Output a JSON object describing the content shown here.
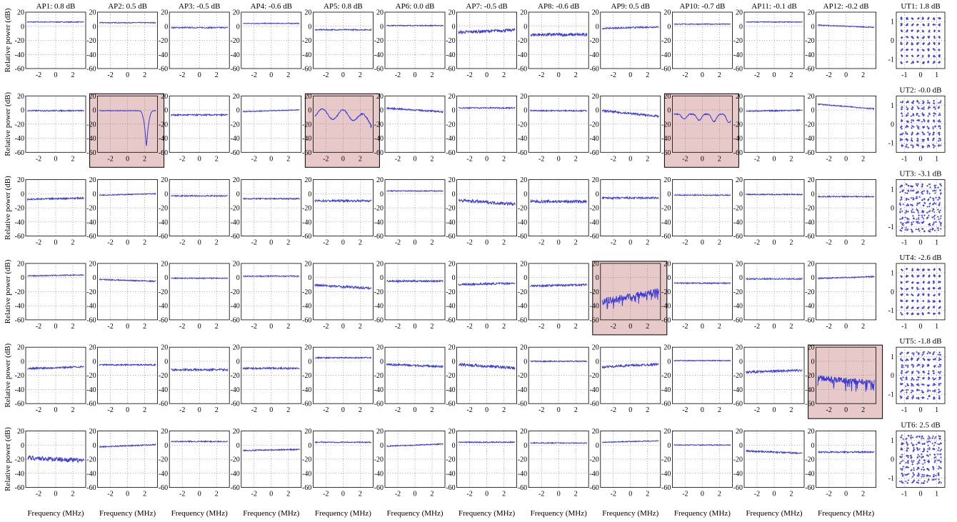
{
  "chart_data": {
    "type": "line",
    "rows": 6,
    "xlabel": "Frequency (MHz)",
    "ylabel": "Relative power (dB)",
    "xlim": [
      -3.5,
      3.5
    ],
    "ylim": [
      -60,
      20
    ],
    "xticks": [
      "-2",
      "0",
      "2"
    ],
    "yticks": [
      "20",
      "0",
      "-20",
      "-40",
      "-60"
    ],
    "grid": true,
    "line_color": "#3a3ad6",
    "highlight_color": "#e8c9c9",
    "access_points": [
      {
        "title": "AP1: 0.8 dB"
      },
      {
        "title": "AP2: 0.5 dB"
      },
      {
        "title": "AP3: -0.5 dB"
      },
      {
        "title": "AP4: -0.6 dB"
      },
      {
        "title": "AP5: 0.8 dB"
      },
      {
        "title": "AP6: 0.0 dB"
      },
      {
        "title": "AP7: -0.5 dB"
      },
      {
        "title": "AP8: -0.6 dB"
      },
      {
        "title": "AP9: 0.5 dB"
      },
      {
        "title": "AP10: -0.7 dB"
      },
      {
        "title": "AP11: -0.1 dB"
      },
      {
        "title": "AP12: -0.2 dB"
      }
    ],
    "users": [
      {
        "title": "UT1: 1.8 dB"
      },
      {
        "title": "UT2: -0.0 dB"
      },
      {
        "title": "UT3: -3.1 dB"
      },
      {
        "title": "UT4: -2.6 dB"
      },
      {
        "title": "UT5: -1.8 dB"
      },
      {
        "title": "UT6: 2.5 dB"
      }
    ],
    "constellation": {
      "xlim": [
        -1.5,
        1.5
      ],
      "ylim": [
        -1.5,
        1.5
      ],
      "xticks": [
        "-1",
        "0",
        "1"
      ],
      "yticks": [
        "1",
        "0",
        "-1"
      ],
      "grid_points": 8,
      "marker": "+"
    },
    "panels": [
      [
        {
          "type": "flat",
          "level": 6,
          "slope": 0,
          "noise": 0.6
        },
        {
          "type": "flat",
          "level": 5,
          "slope": 0,
          "noise": 0.6
        },
        {
          "type": "flat",
          "level": -2,
          "slope": 0,
          "noise": 0.8
        },
        {
          "type": "flat",
          "level": 4,
          "slope": 0,
          "noise": 0.6
        },
        {
          "type": "flat",
          "level": -5,
          "slope": 0,
          "noise": 0.8
        },
        {
          "type": "flat",
          "level": 1,
          "slope": 0,
          "noise": 0.6
        },
        {
          "type": "flat",
          "level": -7,
          "slope": 0.5,
          "noise": 2
        },
        {
          "type": "flat",
          "level": -12,
          "slope": 0,
          "noise": 2.2
        },
        {
          "type": "flat",
          "level": -2,
          "slope": 0.3,
          "noise": 1
        },
        {
          "type": "flat",
          "level": 3,
          "slope": 0,
          "noise": 0.6
        },
        {
          "type": "flat",
          "level": 6,
          "slope": 0,
          "noise": 0.6
        },
        {
          "type": "flat",
          "level": 0,
          "slope": -0.5,
          "noise": 0.6
        }
      ],
      [
        {
          "type": "flat",
          "level": -1,
          "slope": 0,
          "noise": 0.8
        },
        {
          "type": "notch",
          "highlight": true
        },
        {
          "type": "flat",
          "level": -7,
          "slope": 0,
          "noise": 1
        },
        {
          "type": "flat",
          "level": -1,
          "slope": 0.4,
          "noise": 0.6
        },
        {
          "type": "lobes",
          "highlight": true
        },
        {
          "type": "flat",
          "level": 0,
          "slope": -0.8,
          "noise": 1
        },
        {
          "type": "flat",
          "level": 3,
          "slope": 0,
          "noise": 0.8
        },
        {
          "type": "flat",
          "level": -1,
          "slope": 0,
          "noise": 0.8
        },
        {
          "type": "flat",
          "level": -5,
          "slope": -1.2,
          "noise": 1.5
        },
        {
          "type": "ripples",
          "highlight": true
        },
        {
          "type": "flat",
          "level": -1,
          "slope": 0.2,
          "noise": 0.8
        },
        {
          "type": "flat",
          "level": 5,
          "slope": -1,
          "noise": 0.7
        }
      ],
      [
        {
          "type": "flat",
          "level": -7,
          "slope": 0.3,
          "noise": 1
        },
        {
          "type": "flat",
          "level": -1,
          "slope": 0.3,
          "noise": 0.6
        },
        {
          "type": "flat",
          "level": -3,
          "slope": 0,
          "noise": 0.8
        },
        {
          "type": "flat",
          "level": -7,
          "slope": 0,
          "noise": 0.8
        },
        {
          "type": "flat",
          "level": -10,
          "slope": 0,
          "noise": 1.4
        },
        {
          "type": "flat",
          "level": 4,
          "slope": 0,
          "noise": 0.7
        },
        {
          "type": "flat",
          "level": -12,
          "slope": -0.8,
          "noise": 2.2
        },
        {
          "type": "flat",
          "level": -11,
          "slope": 0,
          "noise": 2
        },
        {
          "type": "flat",
          "level": -6,
          "slope": 0,
          "noise": 1.4
        },
        {
          "type": "flat",
          "level": -2,
          "slope": 0,
          "noise": 0.7
        },
        {
          "type": "flat",
          "level": -1,
          "slope": 0,
          "noise": 0.7
        },
        {
          "type": "flat",
          "level": -4,
          "slope": 0,
          "noise": 0.8
        }
      ],
      [
        {
          "type": "flat",
          "level": 3,
          "slope": 0.2,
          "noise": 0.7
        },
        {
          "type": "flat",
          "level": -4,
          "slope": -0.4,
          "noise": 0.8
        },
        {
          "type": "flat",
          "level": -1,
          "slope": 0,
          "noise": 0.7
        },
        {
          "type": "flat",
          "level": 2,
          "slope": 0,
          "noise": 0.7
        },
        {
          "type": "flat",
          "level": -13,
          "slope": -0.7,
          "noise": 1.6
        },
        {
          "type": "flat",
          "level": -5,
          "slope": 0,
          "noise": 1.2
        },
        {
          "type": "flat",
          "level": -9,
          "slope": 0.3,
          "noise": 1.4
        },
        {
          "type": "flat",
          "level": -11,
          "slope": 0.3,
          "noise": 1.4
        },
        {
          "type": "noisy",
          "highlight": true
        },
        {
          "type": "flat",
          "level": -8,
          "slope": 0,
          "noise": 0.8
        },
        {
          "type": "flat",
          "level": -2,
          "slope": 0,
          "noise": 0.8
        },
        {
          "type": "flat",
          "level": 0,
          "slope": 0.4,
          "noise": 0.8
        }
      ],
      [
        {
          "type": "flat",
          "level": -9,
          "slope": 0.4,
          "noise": 1.2
        },
        {
          "type": "flat",
          "level": -5,
          "slope": 0,
          "noise": 0.9
        },
        {
          "type": "flat",
          "level": -12,
          "slope": 0,
          "noise": 1.4
        },
        {
          "type": "flat",
          "level": -10,
          "slope": 0,
          "noise": 1.2
        },
        {
          "type": "flat",
          "level": 5,
          "slope": 0,
          "noise": 0.8
        },
        {
          "type": "flat",
          "level": -6,
          "slope": -0.5,
          "noise": 1.4
        },
        {
          "type": "flat",
          "level": -7,
          "slope": -0.8,
          "noise": 2
        },
        {
          "type": "flat",
          "level": 0,
          "slope": 0,
          "noise": 0.8
        },
        {
          "type": "flat",
          "level": -6,
          "slope": 0.6,
          "noise": 1.6
        },
        {
          "type": "flat",
          "level": 1,
          "slope": 0,
          "noise": 0.6
        },
        {
          "type": "flat",
          "level": -14,
          "slope": 0.4,
          "noise": 1.6
        },
        {
          "type": "deepnoisy",
          "highlight": true
        }
      ],
      [
        {
          "type": "flat",
          "level": -20,
          "slope": -0.6,
          "noise": 3.2
        },
        {
          "type": "flat",
          "level": -1,
          "slope": 0.5,
          "noise": 0.8
        },
        {
          "type": "flat",
          "level": 5,
          "slope": 0,
          "noise": 0.8
        },
        {
          "type": "flat",
          "level": -7,
          "slope": 0.2,
          "noise": 0.8
        },
        {
          "type": "flat",
          "level": 4,
          "slope": 0,
          "noise": 0.7
        },
        {
          "type": "flat",
          "level": 0,
          "slope": 0.5,
          "noise": 0.7
        },
        {
          "type": "flat",
          "level": 4,
          "slope": 0,
          "noise": 0.7
        },
        {
          "type": "flat",
          "level": 3,
          "slope": 0,
          "noise": 0.6
        },
        {
          "type": "flat",
          "level": 5,
          "slope": 0.3,
          "noise": 0.6
        },
        {
          "type": "flat",
          "level": 0,
          "slope": 0,
          "noise": 0.6
        },
        {
          "type": "flat",
          "level": -10,
          "slope": -0.5,
          "noise": 1
        },
        {
          "type": "flat",
          "level": -10,
          "slope": 0,
          "noise": 1
        }
      ]
    ]
  }
}
